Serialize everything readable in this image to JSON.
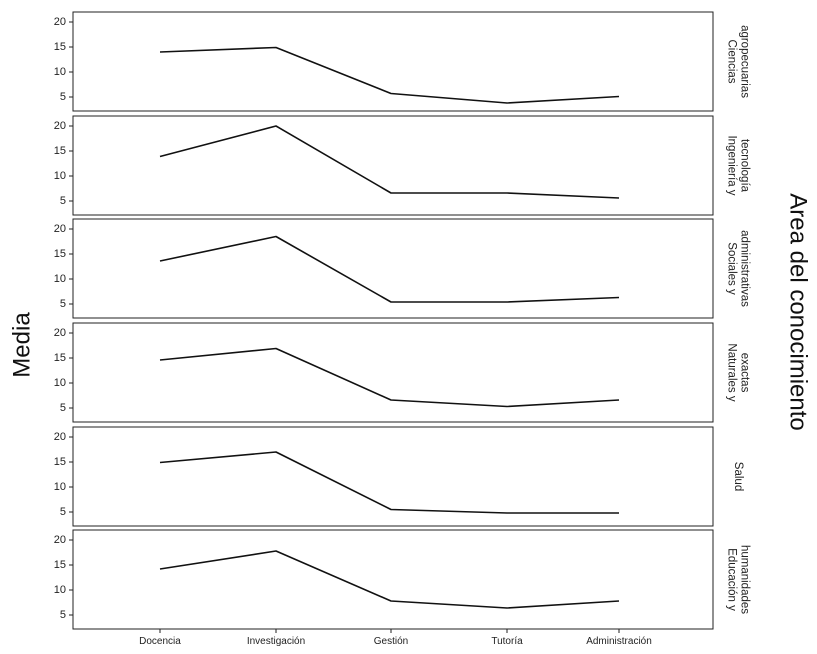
{
  "chart_data": {
    "type": "line",
    "categories": [
      "Docencia",
      "Investigación",
      "Gestión",
      "Tutoría",
      "Administración"
    ],
    "ylabel": "Media",
    "facet_title": "Area del conocimiento",
    "y_ticks": [
      5,
      10,
      15,
      20
    ],
    "ylim": [
      3,
      20.8
    ],
    "grid": false,
    "panels": [
      {
        "label_lines": [
          "Ciencias",
          "agropecuarias"
        ],
        "values": [
          14.0,
          14.9,
          5.7,
          3.8,
          5.1
        ]
      },
      {
        "label_lines": [
          "Ingeniería y",
          "tecnología"
        ],
        "values": [
          13.9,
          20.0,
          6.6,
          6.6,
          5.6
        ]
      },
      {
        "label_lines": [
          "Sociales y",
          "administrativas"
        ],
        "values": [
          13.6,
          18.5,
          5.4,
          5.4,
          6.3
        ]
      },
      {
        "label_lines": [
          "Naturales y",
          "exactas"
        ],
        "values": [
          14.6,
          16.9,
          6.6,
          5.3,
          6.6
        ]
      },
      {
        "label_lines": [
          "Salud"
        ],
        "values": [
          14.9,
          17.0,
          5.5,
          4.8,
          4.8
        ]
      },
      {
        "label_lines": [
          "Educación y",
          "humanidades"
        ],
        "values": [
          14.2,
          17.8,
          7.8,
          6.4,
          7.8
        ]
      }
    ]
  }
}
